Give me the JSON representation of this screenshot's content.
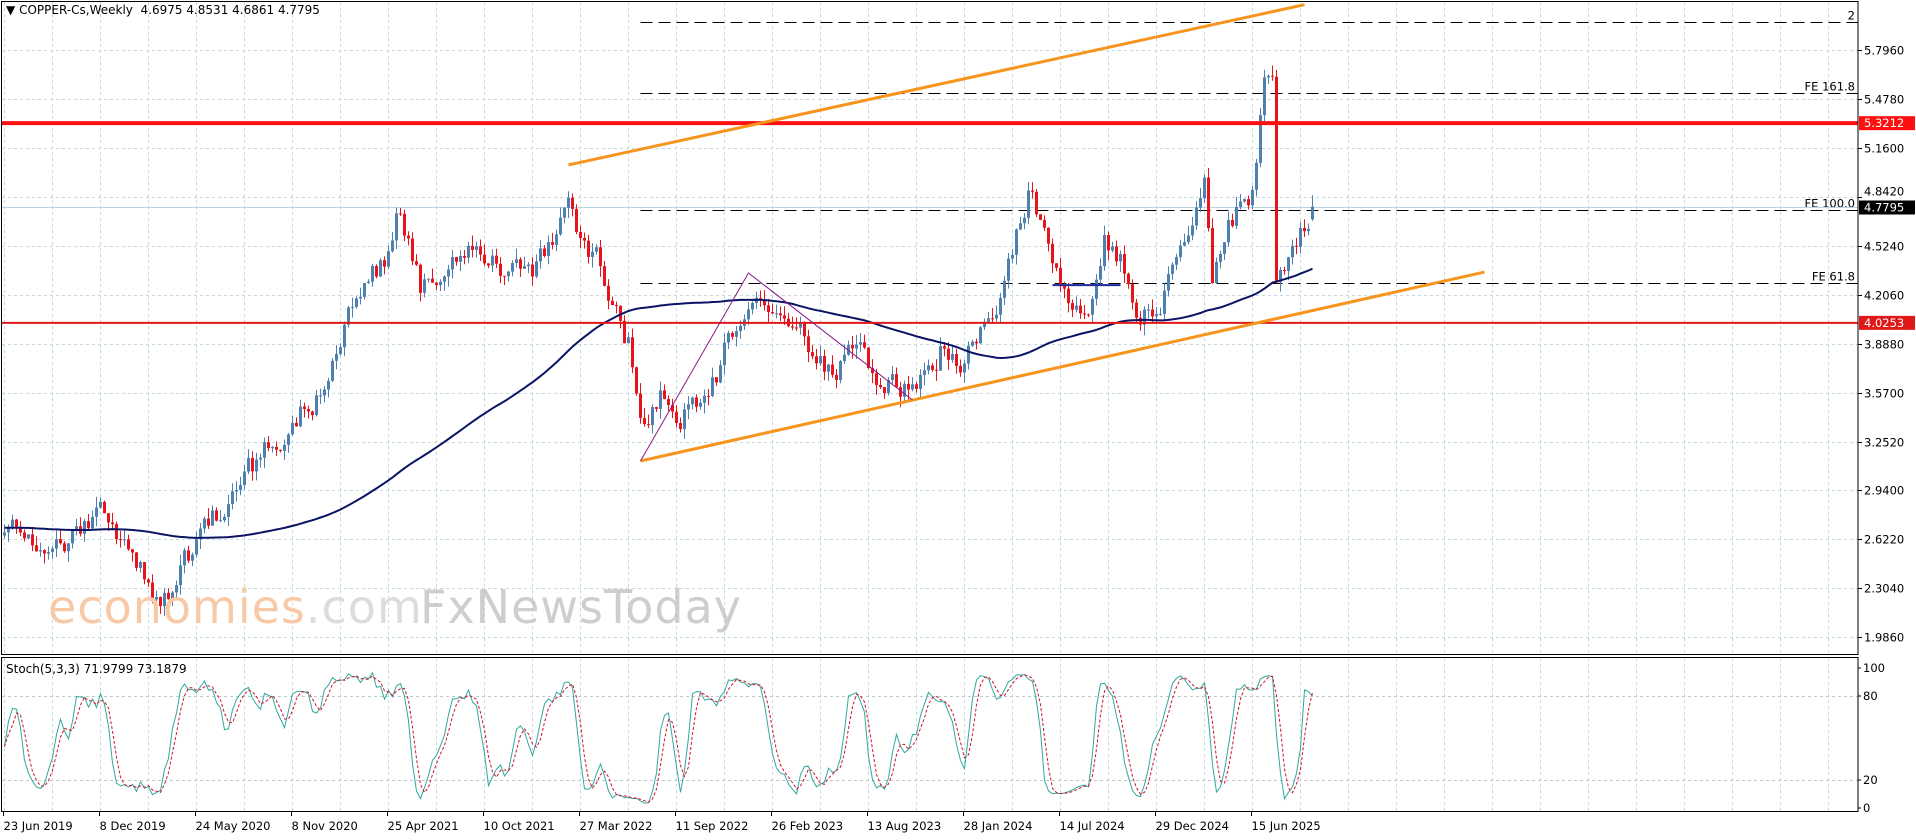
{
  "header": {
    "symbol_timeframe": "COPPER-Cs,Weekly",
    "ohlc": "4.6975 4.8531 4.6861 4.7795",
    "menu_icon": "triangle-down-icon"
  },
  "indicator": {
    "label": "Stoch(5,3,3)",
    "values": "71.9799 73.1879"
  },
  "watermark": {
    "brand1_main": "economies",
    "brand1_suffix": ".com",
    "brand2": "FxNewsToday"
  },
  "chart_data": {
    "type": "candlestick",
    "symbol": "COPPER-Cs",
    "timeframe": "Weekly",
    "x_start": "2019-06-23",
    "bars": 328,
    "last_bar": {
      "open": 4.6975,
      "high": 4.8531,
      "low": 4.6861,
      "close": 4.7795
    },
    "ylim": [
      1.87,
      6.12
    ],
    "grid": true,
    "colors": {
      "bull": "#4f81b0",
      "bear": "#e8141b",
      "moving_average": "#0b1464",
      "stoch_main": "#2fa8a0",
      "stoch_signal": "#d0122a",
      "grid": "#c3d9de",
      "trend_channel": "#f7941d",
      "zigzag": "#8b1a8b",
      "bid_line": "#b7d6e4"
    },
    "close_anchors": [
      {
        "date": "2019-06-23",
        "close": 2.72
      },
      {
        "date": "2019-09-01",
        "close": 2.58
      },
      {
        "date": "2019-11-03",
        "close": 2.66
      },
      {
        "date": "2019-12-15",
        "close": 2.82
      },
      {
        "date": "2020-01-26",
        "close": 2.55
      },
      {
        "date": "2020-03-22",
        "close": 2.2
      },
      {
        "date": "2020-05-24",
        "close": 2.6
      },
      {
        "date": "2020-08-02",
        "close": 2.95
      },
      {
        "date": "2020-11-08",
        "close": 3.4
      },
      {
        "date": "2021-01-10",
        "close": 3.65
      },
      {
        "date": "2021-02-21",
        "close": 4.1
      },
      {
        "date": "2021-04-25",
        "close": 4.45
      },
      {
        "date": "2021-05-09",
        "close": 4.75
      },
      {
        "date": "2021-06-20",
        "close": 4.25
      },
      {
        "date": "2021-08-01",
        "close": 4.45
      },
      {
        "date": "2021-10-10",
        "close": 4.5
      },
      {
        "date": "2021-12-19",
        "close": 4.3
      },
      {
        "date": "2022-02-06",
        "close": 4.5
      },
      {
        "date": "2022-03-06",
        "close": 4.85
      },
      {
        "date": "2022-03-27",
        "close": 4.6
      },
      {
        "date": "2022-04-24",
        "close": 4.45
      },
      {
        "date": "2022-05-22",
        "close": 4.2
      },
      {
        "date": "2022-06-19",
        "close": 3.9
      },
      {
        "date": "2022-07-10",
        "close": 3.3
      },
      {
        "date": "2022-08-14",
        "close": 3.6
      },
      {
        "date": "2022-09-11",
        "close": 3.45
      },
      {
        "date": "2022-10-16",
        "close": 3.45
      },
      {
        "date": "2022-11-20",
        "close": 3.7
      },
      {
        "date": "2023-01-15",
        "close": 4.2
      },
      {
        "date": "2023-02-26",
        "close": 4.05
      },
      {
        "date": "2023-04-09",
        "close": 4.0
      },
      {
        "date": "2023-05-28",
        "close": 3.7
      },
      {
        "date": "2023-07-16",
        "close": 3.85
      },
      {
        "date": "2023-08-13",
        "close": 3.75
      },
      {
        "date": "2023-10-08",
        "close": 3.6
      },
      {
        "date": "2023-11-05",
        "close": 3.6
      },
      {
        "date": "2023-12-17",
        "close": 3.85
      },
      {
        "date": "2024-01-28",
        "close": 3.8
      },
      {
        "date": "2024-03-10",
        "close": 4.05
      },
      {
        "date": "2024-04-14",
        "close": 4.4
      },
      {
        "date": "2024-05-12",
        "close": 4.75
      },
      {
        "date": "2024-05-19",
        "close": 4.9
      },
      {
        "date": "2024-06-16",
        "close": 4.55
      },
      {
        "date": "2024-07-14",
        "close": 4.3
      },
      {
        "date": "2024-08-04",
        "close": 4.05
      },
      {
        "date": "2024-09-01",
        "close": 4.15
      },
      {
        "date": "2024-09-29",
        "close": 4.55
      },
      {
        "date": "2024-10-27",
        "close": 4.4
      },
      {
        "date": "2024-11-24",
        "close": 4.15
      },
      {
        "date": "2024-12-29",
        "close": 4.05
      },
      {
        "date": "2025-02-02",
        "close": 4.45
      },
      {
        "date": "2025-03-02",
        "close": 4.6
      },
      {
        "date": "2025-03-23",
        "close": 5.05
      },
      {
        "date": "2025-04-06",
        "close": 4.4
      },
      {
        "date": "2025-05-04",
        "close": 4.65
      },
      {
        "date": "2025-06-15",
        "close": 4.85
      },
      {
        "date": "2025-07-06",
        "close": 5.55
      },
      {
        "date": "2025-07-20",
        "close": 5.7
      },
      {
        "date": "2025-07-27",
        "close": 4.4
      },
      {
        "date": "2025-08-24",
        "close": 4.5
      },
      {
        "date": "2025-09-28",
        "close": 4.7795
      }
    ],
    "price_axis_ticks": [
      "5.7960",
      "5.4780",
      "5.1600",
      "4.8420",
      "4.5240",
      "4.2060",
      "3.8880",
      "3.5700",
      "3.2520",
      "2.9400",
      "2.6220",
      "2.3040",
      "1.9860"
    ],
    "time_axis_ticks": [
      "23 Jun 2019",
      "8 Dec 2019",
      "24 May 2020",
      "8 Nov 2020",
      "25 Apr 2021",
      "10 Oct 2021",
      "27 Mar 2022",
      "11 Sep 2022",
      "26 Feb 2023",
      "13 Aug 2023",
      "28 Jan 2024",
      "14 Jul 2024",
      "29 Dec 2024",
      "15 Jun 2025"
    ],
    "current_price": {
      "label": "4.7795",
      "price": 4.7795
    },
    "horizontal_levels": [
      {
        "label": "5.3212",
        "price": 5.3212,
        "color": "#ff1010",
        "weight": "thick"
      },
      {
        "label": "4.0253",
        "price": 4.0253,
        "color": "#e01818",
        "weight": "thin"
      }
    ],
    "fibonacci_expansion": {
      "start_date": "2022-07-10",
      "levels": [
        {
          "label": "2",
          "price": 5.978
        },
        {
          "label": "FE 161.8",
          "price": 5.517
        },
        {
          "label": "FE 100.0",
          "price": 4.758
        },
        {
          "label": "FE 61.8",
          "price": 4.284
        }
      ]
    },
    "trend_channel": [
      {
        "from": {
          "date": "2022-03-06",
          "price": 5.05
        },
        "to": {
          "date": "2025-09-14",
          "price": 6.09
        }
      },
      {
        "from": {
          "date": "2022-07-10",
          "price": 3.129
        },
        "to": {
          "date": "2026-07-26",
          "price": 4.355
        }
      }
    ],
    "zigzag": [
      {
        "date": "2022-07-10",
        "price": 3.129
      },
      {
        "date": "2023-01-15",
        "price": 4.349
      },
      {
        "date": "2023-10-29",
        "price": 3.525
      }
    ],
    "short_segment": {
      "from": {
        "date": "2024-06-30",
        "price": 4.27
      },
      "to": {
        "date": "2024-10-27",
        "price": 4.27
      }
    },
    "stochastic": {
      "k": 5,
      "d": 3,
      "slowing": 3,
      "axis_ticks": [
        100,
        80,
        20,
        0
      ],
      "levels": [
        80,
        20
      ],
      "ylim": [
        0,
        100
      ]
    }
  }
}
